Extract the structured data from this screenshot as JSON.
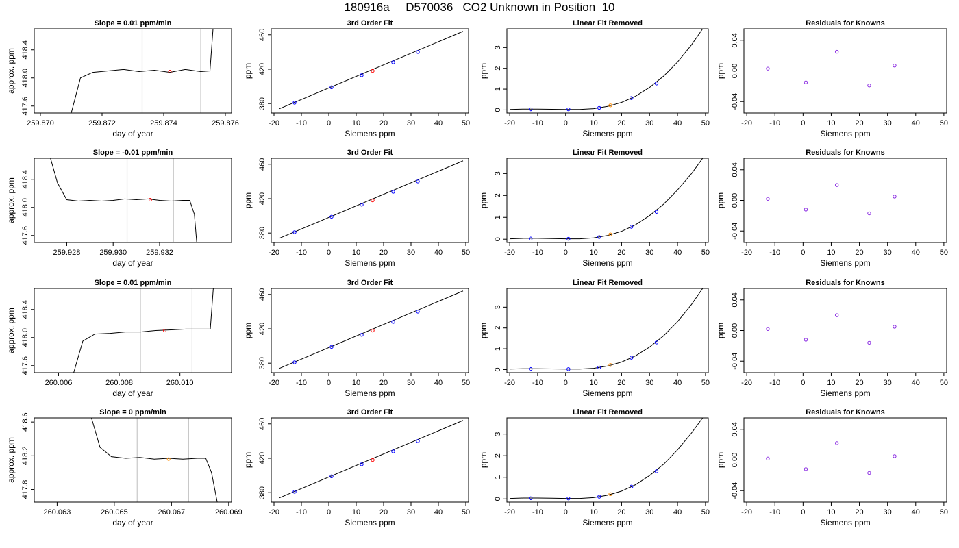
{
  "figure": {
    "title": "180916a     D570036   CO2 Unknown in Position  10"
  },
  "chart_data": [
    {
      "type": "line",
      "title": "Slope =  0.01  ppm/min",
      "xlabel": "day of year",
      "ylabel": "approx. ppm",
      "xlim": [
        259.8698,
        259.8762
      ],
      "ylim": [
        417.5,
        418.7
      ],
      "xticks": [
        "259.870",
        "259.872",
        "259.874",
        "259.876"
      ],
      "yticks": [
        "417.6",
        "418.0",
        "418.4"
      ],
      "vlines": [
        259.8733,
        259.8752
      ],
      "marker": {
        "x": 259.8742,
        "y": 418.09,
        "color": "#ff0000"
      },
      "series": [
        {
          "x": [
            259.871,
            259.8713,
            259.8717,
            259.8722,
            259.8727,
            259.8732,
            259.8737,
            259.8742,
            259.8747,
            259.8752,
            259.8755,
            259.8756
          ],
          "y": [
            417.5,
            418.0,
            418.08,
            418.1,
            418.12,
            418.09,
            418.11,
            418.08,
            418.12,
            418.09,
            418.1,
            418.7
          ]
        }
      ]
    },
    {
      "type": "scatter",
      "title": "3rd Order Fit",
      "xlabel": "Siemens ppm",
      "ylabel": "ppm",
      "xlim": [
        -21,
        51
      ],
      "ylim": [
        369,
        467
      ],
      "xticks": [
        "-20",
        "-10",
        "0",
        "10",
        "20",
        "30",
        "40",
        "50"
      ],
      "yticks": [
        "380",
        "420",
        "460"
      ],
      "fit_line": {
        "x": [
          -18,
          49
        ],
        "y": [
          374,
          464
        ]
      },
      "points": [
        {
          "x": -12.5,
          "y": 381,
          "color": "#0000ff"
        },
        {
          "x": 1,
          "y": 399,
          "color": "#0000ff"
        },
        {
          "x": 12,
          "y": 413,
          "color": "#0000ff"
        },
        {
          "x": 23.5,
          "y": 428,
          "color": "#0000ff"
        },
        {
          "x": 32.5,
          "y": 440,
          "color": "#0000ff"
        },
        {
          "x": 16,
          "y": 418,
          "color": "#ff0000"
        }
      ]
    },
    {
      "type": "scatter",
      "title": "Linear Fit Removed",
      "xlabel": "Siemens ppm",
      "ylabel": "ppm",
      "xlim": [
        -21,
        51
      ],
      "ylim": [
        -0.15,
        3.9
      ],
      "xticks": [
        "-20",
        "-10",
        "0",
        "10",
        "20",
        "30",
        "40",
        "50"
      ],
      "yticks": [
        "0",
        "1",
        "2",
        "3"
      ],
      "curve": {
        "x": [
          -20,
          -15,
          -10,
          -5,
          0,
          5,
          10,
          15,
          20,
          25,
          30,
          35,
          40,
          45,
          49
        ],
        "y": [
          0.02,
          0.04,
          0.04,
          0.03,
          0.02,
          0.02,
          0.06,
          0.17,
          0.36,
          0.66,
          1.08,
          1.62,
          2.3,
          3.13,
          3.9
        ]
      },
      "points": [
        {
          "x": -12.5,
          "y": 0.03,
          "color": "#0000ff"
        },
        {
          "x": 1,
          "y": 0.03,
          "color": "#0000ff"
        },
        {
          "x": 12,
          "y": 0.1,
          "color": "#0000ff"
        },
        {
          "x": 23.5,
          "y": 0.57,
          "color": "#0000ff"
        },
        {
          "x": 32.5,
          "y": 1.27,
          "color": "#0000ff"
        },
        {
          "x": 16,
          "y": 0.22,
          "color": "#ff8c00"
        }
      ]
    },
    {
      "type": "scatter",
      "title": "Residuals for Knowns",
      "xlabel": "Siemens ppm",
      "ylabel": "ppm",
      "xlim": [
        -21,
        51
      ],
      "ylim": [
        -0.055,
        0.055
      ],
      "xticks": [
        "-20",
        "-10",
        "0",
        "10",
        "20",
        "30",
        "40",
        "50"
      ],
      "yticks": [
        "-0.04",
        "0.00",
        "0.04"
      ],
      "points": [
        {
          "x": -12.5,
          "y": 0.003,
          "color": "#8a2be2"
        },
        {
          "x": 1,
          "y": -0.015,
          "color": "#8a2be2"
        },
        {
          "x": 12,
          "y": 0.025,
          "color": "#8a2be2"
        },
        {
          "x": 23.5,
          "y": -0.019,
          "color": "#8a2be2"
        },
        {
          "x": 32.5,
          "y": 0.007,
          "color": "#8a2be2"
        }
      ]
    },
    {
      "type": "line",
      "title": "Slope =  -0.01  ppm/min",
      "xlabel": "day of year",
      "ylabel": "approx. ppm",
      "xlim": [
        259.9266,
        259.9351
      ],
      "ylim": [
        417.5,
        418.7
      ],
      "xticks": [
        "259.928",
        "259.930",
        "259.932"
      ],
      "yticks": [
        "417.6",
        "418.0",
        "418.4"
      ],
      "vlines": [
        259.9306,
        259.9326
      ],
      "marker": {
        "x": 259.9316,
        "y": 418.11,
        "color": "#ff0000"
      },
      "series": [
        {
          "x": [
            259.9273,
            259.9276,
            259.928,
            259.9285,
            259.929,
            259.9295,
            259.93,
            259.9305,
            259.931,
            259.9315,
            259.932,
            259.9325,
            259.933,
            259.9333,
            259.9335,
            259.9336
          ],
          "y": [
            418.7,
            418.35,
            418.11,
            418.09,
            418.1,
            418.09,
            418.1,
            418.12,
            418.11,
            418.12,
            418.1,
            418.09,
            418.1,
            418.1,
            417.9,
            417.5
          ]
        }
      ]
    },
    {
      "type": "scatter",
      "title": "3rd Order Fit",
      "xlabel": "Siemens ppm",
      "ylabel": "ppm",
      "xlim": [
        -21,
        51
      ],
      "ylim": [
        369,
        467
      ],
      "xticks": [
        "-20",
        "-10",
        "0",
        "10",
        "20",
        "30",
        "40",
        "50"
      ],
      "yticks": [
        "380",
        "420",
        "460"
      ],
      "fit_line": {
        "x": [
          -18,
          49
        ],
        "y": [
          374,
          464
        ]
      },
      "points": [
        {
          "x": -12.5,
          "y": 381,
          "color": "#0000ff"
        },
        {
          "x": 1,
          "y": 399,
          "color": "#0000ff"
        },
        {
          "x": 12,
          "y": 413,
          "color": "#0000ff"
        },
        {
          "x": 23.5,
          "y": 428,
          "color": "#0000ff"
        },
        {
          "x": 32.5,
          "y": 440,
          "color": "#0000ff"
        },
        {
          "x": 16,
          "y": 418,
          "color": "#ff0000"
        }
      ]
    },
    {
      "type": "scatter",
      "title": "Linear Fit Removed",
      "xlabel": "Siemens ppm",
      "ylabel": "ppm",
      "xlim": [
        -21,
        51
      ],
      "ylim": [
        -0.15,
        3.7
      ],
      "xticks": [
        "-20",
        "-10",
        "0",
        "10",
        "20",
        "30",
        "40",
        "50"
      ],
      "yticks": [
        "0",
        "1",
        "2",
        "3"
      ],
      "curve": {
        "x": [
          -20,
          -15,
          -10,
          -5,
          0,
          5,
          10,
          15,
          20,
          25,
          30,
          35,
          40,
          45,
          49
        ],
        "y": [
          0.02,
          0.04,
          0.04,
          0.03,
          0.02,
          0.02,
          0.06,
          0.17,
          0.36,
          0.66,
          1.08,
          1.6,
          2.25,
          3.0,
          3.7
        ]
      },
      "points": [
        {
          "x": -12.5,
          "y": 0.03,
          "color": "#0000ff"
        },
        {
          "x": 1,
          "y": 0.02,
          "color": "#0000ff"
        },
        {
          "x": 12,
          "y": 0.1,
          "color": "#0000ff"
        },
        {
          "x": 23.5,
          "y": 0.57,
          "color": "#0000ff"
        },
        {
          "x": 32.5,
          "y": 1.25,
          "color": "#0000ff"
        },
        {
          "x": 16,
          "y": 0.22,
          "color": "#ff8c00"
        }
      ]
    },
    {
      "type": "scatter",
      "title": "Residuals for Knowns",
      "xlabel": "Siemens ppm",
      "ylabel": "ppm",
      "xlim": [
        -21,
        51
      ],
      "ylim": [
        -0.055,
        0.055
      ],
      "xticks": [
        "-20",
        "-10",
        "0",
        "10",
        "20",
        "30",
        "40",
        "50"
      ],
      "yticks": [
        "-0.04",
        "0.00",
        "0.04"
      ],
      "points": [
        {
          "x": -12.5,
          "y": 0.002,
          "color": "#8a2be2"
        },
        {
          "x": 1,
          "y": -0.012,
          "color": "#8a2be2"
        },
        {
          "x": 12,
          "y": 0.02,
          "color": "#8a2be2"
        },
        {
          "x": 23.5,
          "y": -0.017,
          "color": "#8a2be2"
        },
        {
          "x": 32.5,
          "y": 0.005,
          "color": "#8a2be2"
        }
      ]
    },
    {
      "type": "line",
      "title": "Slope =  0.01  ppm/min",
      "xlabel": "day of year",
      "ylabel": "approx. ppm",
      "xlim": [
        260.0052,
        260.0117
      ],
      "ylim": [
        417.5,
        418.7
      ],
      "xticks": [
        "260.006",
        "260.008",
        "260.010"
      ],
      "yticks": [
        "417.6",
        "418.0",
        "418.4"
      ],
      "vlines": [
        260.0087,
        260.0104
      ],
      "marker": {
        "x": 260.0095,
        "y": 418.1,
        "color": "#ff0000"
      },
      "series": [
        {
          "x": [
            260.0065,
            260.0068,
            260.0072,
            260.0077,
            260.0082,
            260.0087,
            260.0092,
            260.0097,
            260.0102,
            260.0106,
            260.011,
            260.0111
          ],
          "y": [
            417.5,
            417.95,
            418.05,
            418.06,
            418.08,
            418.08,
            418.1,
            418.11,
            418.12,
            418.12,
            418.12,
            418.7
          ]
        }
      ]
    },
    {
      "type": "scatter",
      "title": "3rd Order Fit",
      "xlabel": "Siemens ppm",
      "ylabel": "ppm",
      "xlim": [
        -21,
        51
      ],
      "ylim": [
        369,
        467
      ],
      "xticks": [
        "-20",
        "-10",
        "0",
        "10",
        "20",
        "30",
        "40",
        "50"
      ],
      "yticks": [
        "380",
        "420",
        "460"
      ],
      "fit_line": {
        "x": [
          -18,
          49
        ],
        "y": [
          374,
          464
        ]
      },
      "points": [
        {
          "x": -12.5,
          "y": 381,
          "color": "#0000ff"
        },
        {
          "x": 1,
          "y": 399,
          "color": "#0000ff"
        },
        {
          "x": 12,
          "y": 413,
          "color": "#0000ff"
        },
        {
          "x": 23.5,
          "y": 428,
          "color": "#0000ff"
        },
        {
          "x": 32.5,
          "y": 440,
          "color": "#0000ff"
        },
        {
          "x": 16,
          "y": 418,
          "color": "#ff0000"
        }
      ]
    },
    {
      "type": "scatter",
      "title": "Linear Fit Removed",
      "xlabel": "Siemens ppm",
      "ylabel": "ppm",
      "xlim": [
        -21,
        51
      ],
      "ylim": [
        -0.15,
        3.9
      ],
      "xticks": [
        "-20",
        "-10",
        "0",
        "10",
        "20",
        "30",
        "40",
        "50"
      ],
      "yticks": [
        "0",
        "1",
        "2",
        "3"
      ],
      "curve": {
        "x": [
          -20,
          -15,
          -10,
          -5,
          0,
          5,
          10,
          15,
          20,
          25,
          30,
          35,
          40,
          45,
          49
        ],
        "y": [
          0.02,
          0.04,
          0.04,
          0.03,
          0.02,
          0.02,
          0.06,
          0.17,
          0.36,
          0.66,
          1.08,
          1.62,
          2.3,
          3.13,
          3.9
        ]
      },
      "points": [
        {
          "x": -12.5,
          "y": 0.03,
          "color": "#0000ff"
        },
        {
          "x": 1,
          "y": 0.02,
          "color": "#0000ff"
        },
        {
          "x": 12,
          "y": 0.1,
          "color": "#0000ff"
        },
        {
          "x": 23.5,
          "y": 0.57,
          "color": "#0000ff"
        },
        {
          "x": 32.5,
          "y": 1.3,
          "color": "#0000ff"
        },
        {
          "x": 16,
          "y": 0.22,
          "color": "#ff8c00"
        }
      ]
    },
    {
      "type": "scatter",
      "title": "Residuals for Knowns",
      "xlabel": "Siemens ppm",
      "ylabel": "ppm",
      "xlim": [
        -21,
        51
      ],
      "ylim": [
        -0.055,
        0.055
      ],
      "xticks": [
        "-20",
        "-10",
        "0",
        "10",
        "20",
        "30",
        "40",
        "50"
      ],
      "yticks": [
        "-0.04",
        "0.00",
        "0.04"
      ],
      "points": [
        {
          "x": -12.5,
          "y": 0.002,
          "color": "#8a2be2"
        },
        {
          "x": 1,
          "y": -0.012,
          "color": "#8a2be2"
        },
        {
          "x": 12,
          "y": 0.02,
          "color": "#8a2be2"
        },
        {
          "x": 23.5,
          "y": -0.016,
          "color": "#8a2be2"
        },
        {
          "x": 32.5,
          "y": 0.005,
          "color": "#8a2be2"
        }
      ]
    },
    {
      "type": "line",
      "title": "Slope =  0  ppm/min",
      "xlabel": "day of year",
      "ylabel": "approx. ppm",
      "xlim": [
        260.0622,
        260.0691
      ],
      "ylim": [
        417.65,
        418.65
      ],
      "xticks": [
        "260.063",
        "260.065",
        "260.067",
        "260.069"
      ],
      "yticks": [
        "417.8",
        "418.2",
        "418.6"
      ],
      "vlines": [
        260.0658,
        260.0676
      ],
      "marker": {
        "x": 260.0669,
        "y": 418.16,
        "color": "#ff8c00"
      },
      "series": [
        {
          "x": [
            260.0642,
            260.0645,
            260.0649,
            260.0654,
            260.0659,
            260.0664,
            260.0669,
            260.0674,
            260.0679,
            260.0682,
            260.0684,
            260.0686
          ],
          "y": [
            418.65,
            418.3,
            418.19,
            418.17,
            418.18,
            418.16,
            418.17,
            418.16,
            418.17,
            418.17,
            418.0,
            417.65
          ]
        }
      ]
    },
    {
      "type": "scatter",
      "title": "3rd Order Fit",
      "xlabel": "Siemens ppm",
      "ylabel": "ppm",
      "xlim": [
        -21,
        51
      ],
      "ylim": [
        369,
        467
      ],
      "xticks": [
        "-20",
        "-10",
        "0",
        "10",
        "20",
        "30",
        "40",
        "50"
      ],
      "yticks": [
        "380",
        "420",
        "460"
      ],
      "fit_line": {
        "x": [
          -18,
          49
        ],
        "y": [
          374,
          464
        ]
      },
      "points": [
        {
          "x": -12.5,
          "y": 381,
          "color": "#0000ff"
        },
        {
          "x": 1,
          "y": 399,
          "color": "#0000ff"
        },
        {
          "x": 12,
          "y": 413,
          "color": "#0000ff"
        },
        {
          "x": 23.5,
          "y": 428,
          "color": "#0000ff"
        },
        {
          "x": 32.5,
          "y": 440,
          "color": "#0000ff"
        },
        {
          "x": 16,
          "y": 418,
          "color": "#ff0000"
        }
      ]
    },
    {
      "type": "scatter",
      "title": "Linear Fit Removed",
      "xlabel": "Siemens ppm",
      "ylabel": "ppm",
      "xlim": [
        -21,
        51
      ],
      "ylim": [
        -0.15,
        3.75
      ],
      "xticks": [
        "-20",
        "-10",
        "0",
        "10",
        "20",
        "30",
        "40",
        "50"
      ],
      "yticks": [
        "0",
        "1",
        "2",
        "3"
      ],
      "curve": {
        "x": [
          -20,
          -15,
          -10,
          -5,
          0,
          5,
          10,
          15,
          20,
          25,
          30,
          35,
          40,
          45,
          49
        ],
        "y": [
          0.02,
          0.04,
          0.04,
          0.03,
          0.02,
          0.02,
          0.06,
          0.17,
          0.36,
          0.66,
          1.08,
          1.6,
          2.27,
          3.05,
          3.75
        ]
      },
      "points": [
        {
          "x": -12.5,
          "y": 0.03,
          "color": "#0000ff"
        },
        {
          "x": 1,
          "y": 0.02,
          "color": "#0000ff"
        },
        {
          "x": 12,
          "y": 0.1,
          "color": "#0000ff"
        },
        {
          "x": 23.5,
          "y": 0.57,
          "color": "#0000ff"
        },
        {
          "x": 32.5,
          "y": 1.28,
          "color": "#0000ff"
        },
        {
          "x": 16,
          "y": 0.22,
          "color": "#ff8c00"
        }
      ]
    },
    {
      "type": "scatter",
      "title": "Residuals for Knowns",
      "xlabel": "Siemens ppm",
      "ylabel": "ppm",
      "xlim": [
        -21,
        51
      ],
      "ylim": [
        -0.055,
        0.055
      ],
      "xticks": [
        "-20",
        "-10",
        "0",
        "10",
        "20",
        "30",
        "40",
        "50"
      ],
      "yticks": [
        "-0.04",
        "0.00",
        "0.04"
      ],
      "points": [
        {
          "x": -12.5,
          "y": 0.002,
          "color": "#8a2be2"
        },
        {
          "x": 1,
          "y": -0.012,
          "color": "#8a2be2"
        },
        {
          "x": 12,
          "y": 0.022,
          "color": "#8a2be2"
        },
        {
          "x": 23.5,
          "y": -0.017,
          "color": "#8a2be2"
        },
        {
          "x": 32.5,
          "y": 0.005,
          "color": "#8a2be2"
        }
      ]
    }
  ]
}
